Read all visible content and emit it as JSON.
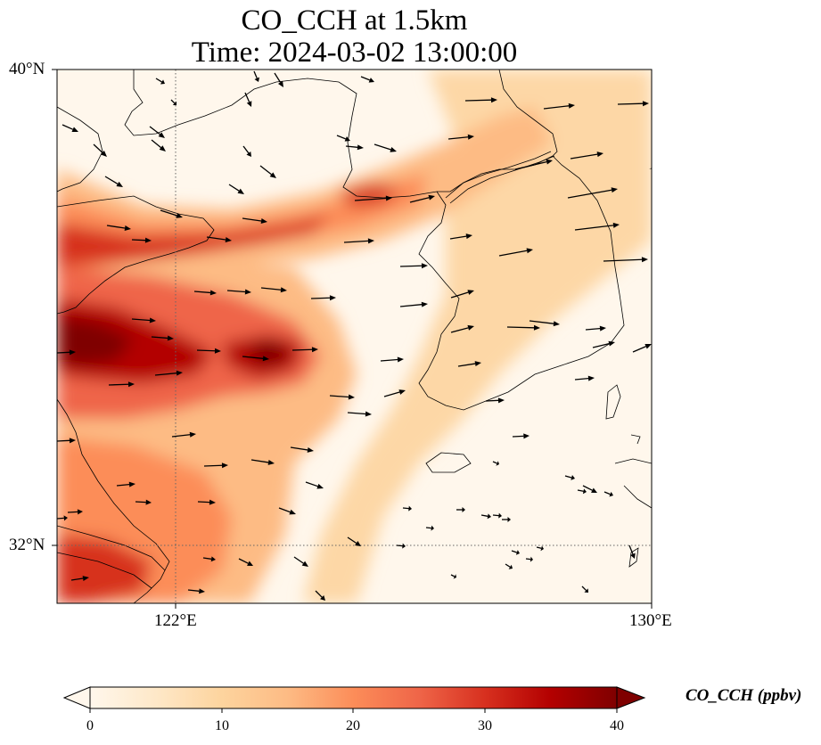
{
  "title": {
    "line1": "CO_CCH at 1.5km",
    "line2": "Time: 2024-03-02 13:00:00"
  },
  "map": {
    "lon_range": [
      120,
      130
    ],
    "lat_range": [
      31,
      40
    ],
    "lat_ticks": [
      "40°N",
      "32°N"
    ],
    "lon_ticks": [
      "122°E",
      "130°E"
    ],
    "gridlines": "dotted, at 122°E and 32°N"
  },
  "colorbar": {
    "label": "CO_CCH (ppbv)",
    "min": 0,
    "max": 40,
    "extend": "both",
    "ticks": [
      "0",
      "10",
      "20",
      "30",
      "40"
    ],
    "colormap": [
      "#fff7ec",
      "#fee8c8",
      "#fdd49e",
      "#fdbb84",
      "#fc8d59",
      "#ef6548",
      "#d7301f",
      "#b30000",
      "#7f0000"
    ]
  }
}
